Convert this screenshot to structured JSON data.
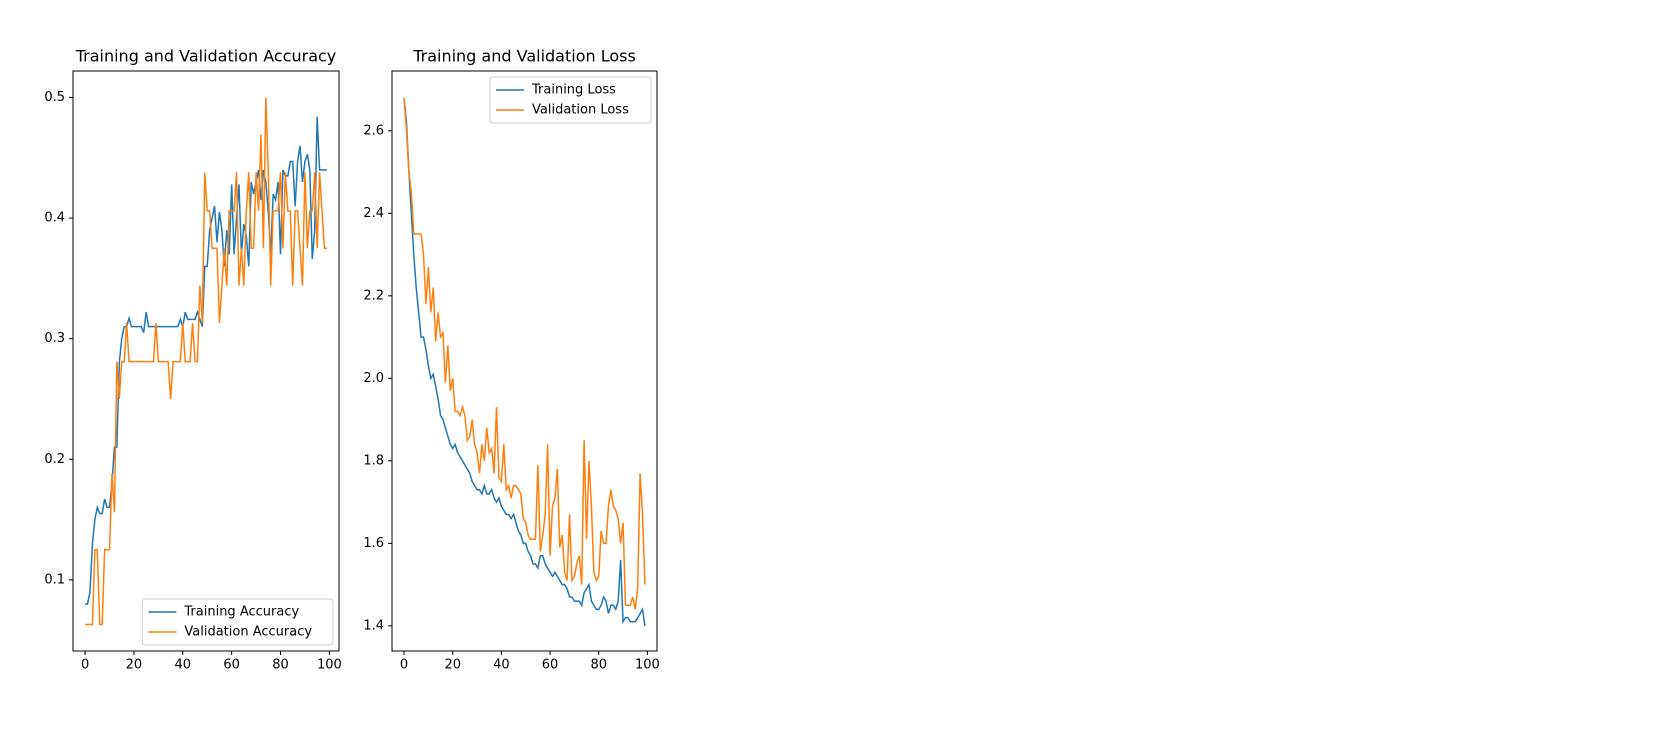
{
  "chart_data": [
    {
      "type": "line",
      "title": "Training and Validation Accuracy",
      "x": [
        0,
        1,
        2,
        3,
        4,
        5,
        6,
        7,
        8,
        9,
        10,
        11,
        12,
        13,
        14,
        15,
        16,
        17,
        18,
        19,
        20,
        21,
        22,
        23,
        24,
        25,
        26,
        27,
        28,
        29,
        30,
        31,
        32,
        33,
        34,
        35,
        36,
        37,
        38,
        39,
        40,
        41,
        42,
        43,
        44,
        45,
        46,
        47,
        48,
        49,
        50,
        51,
        52,
        53,
        54,
        55,
        56,
        57,
        58,
        59,
        60,
        61,
        62,
        63,
        64,
        65,
        66,
        67,
        68,
        69,
        70,
        71,
        72,
        73,
        74,
        75,
        76,
        77,
        78,
        79,
        80,
        81,
        82,
        83,
        84,
        85,
        86,
        87,
        88,
        89,
        90,
        91,
        92,
        93,
        94,
        95,
        96,
        97,
        98,
        99
      ],
      "series": [
        {
          "name": "Training Accuracy",
          "color": "#1f77b4",
          "values": [
            0.08,
            0.08,
            0.09,
            0.13,
            0.15,
            0.16,
            0.155,
            0.155,
            0.167,
            0.16,
            0.16,
            0.18,
            0.21,
            0.21,
            0.28,
            0.3,
            0.31,
            0.31,
            0.317,
            0.31,
            0.31,
            0.31,
            0.31,
            0.31,
            0.305,
            0.322,
            0.31,
            0.31,
            0.31,
            0.31,
            0.31,
            0.31,
            0.31,
            0.31,
            0.31,
            0.31,
            0.31,
            0.31,
            0.31,
            0.316,
            0.31,
            0.322,
            0.316,
            0.316,
            0.316,
            0.316,
            0.322,
            0.316,
            0.31,
            0.36,
            0.36,
            0.39,
            0.4,
            0.41,
            0.38,
            0.405,
            0.39,
            0.36,
            0.39,
            0.37,
            0.428,
            0.37,
            0.4,
            0.428,
            0.37,
            0.395,
            0.385,
            0.36,
            0.43,
            0.42,
            0.43,
            0.44,
            0.415,
            0.44,
            0.43,
            0.405,
            0.37,
            0.42,
            0.415,
            0.43,
            0.37,
            0.44,
            0.435,
            0.435,
            0.447,
            0.447,
            0.41,
            0.447,
            0.46,
            0.43,
            0.447,
            0.453,
            0.44,
            0.366,
            0.39,
            0.484,
            0.44,
            0.44,
            0.44,
            0.44
          ]
        },
        {
          "name": "Validation Accuracy",
          "color": "#ff7f0e",
          "values": [
            0.063,
            0.063,
            0.063,
            0.063,
            0.125,
            0.125,
            0.063,
            0.063,
            0.125,
            0.125,
            0.125,
            0.188,
            0.156,
            0.281,
            0.25,
            0.281,
            0.281,
            0.313,
            0.281,
            0.281,
            0.281,
            0.281,
            0.281,
            0.281,
            0.281,
            0.281,
            0.281,
            0.281,
            0.281,
            0.313,
            0.281,
            0.281,
            0.281,
            0.281,
            0.281,
            0.25,
            0.281,
            0.281,
            0.281,
            0.281,
            0.313,
            0.281,
            0.281,
            0.281,
            0.313,
            0.281,
            0.281,
            0.344,
            0.313,
            0.438,
            0.406,
            0.406,
            0.375,
            0.375,
            0.375,
            0.313,
            0.344,
            0.375,
            0.344,
            0.406,
            0.406,
            0.406,
            0.438,
            0.344,
            0.375,
            0.344,
            0.406,
            0.438,
            0.375,
            0.375,
            0.438,
            0.406,
            0.469,
            0.375,
            0.5,
            0.438,
            0.344,
            0.406,
            0.406,
            0.406,
            0.438,
            0.375,
            0.438,
            0.406,
            0.406,
            0.344,
            0.406,
            0.406,
            0.375,
            0.344,
            0.438,
            0.375,
            0.406,
            0.406,
            0.438,
            0.375,
            0.438,
            0.406,
            0.375,
            0.375
          ]
        }
      ],
      "xlim": [
        -4.95,
        103.95
      ],
      "xticks": [
        0,
        20,
        40,
        60,
        80,
        100
      ],
      "ylim": [
        0.041,
        0.522
      ],
      "yticks": [
        0.1,
        0.2,
        0.3,
        0.4,
        0.5
      ],
      "legend": "lower right"
    },
    {
      "type": "line",
      "title": "Training and Validation Loss",
      "x": [
        0,
        1,
        2,
        3,
        4,
        5,
        6,
        7,
        8,
        9,
        10,
        11,
        12,
        13,
        14,
        15,
        16,
        17,
        18,
        19,
        20,
        21,
        22,
        23,
        24,
        25,
        26,
        27,
        28,
        29,
        30,
        31,
        32,
        33,
        34,
        35,
        36,
        37,
        38,
        39,
        40,
        41,
        42,
        43,
        44,
        45,
        46,
        47,
        48,
        49,
        50,
        51,
        52,
        53,
        54,
        55,
        56,
        57,
        58,
        59,
        60,
        61,
        62,
        63,
        64,
        65,
        66,
        67,
        68,
        69,
        70,
        71,
        72,
        73,
        74,
        75,
        76,
        77,
        78,
        79,
        80,
        81,
        82,
        83,
        84,
        85,
        86,
        87,
        88,
        89,
        90,
        91,
        92,
        93,
        94,
        95,
        96,
        97,
        98,
        99
      ],
      "series": [
        {
          "name": "Training Loss",
          "color": "#1f77b4",
          "values": [
            2.68,
            2.62,
            2.5,
            2.4,
            2.3,
            2.22,
            2.16,
            2.1,
            2.1,
            2.07,
            2.03,
            2.0,
            2.01,
            1.98,
            1.95,
            1.91,
            1.9,
            1.88,
            1.86,
            1.84,
            1.83,
            1.84,
            1.82,
            1.81,
            1.8,
            1.79,
            1.78,
            1.77,
            1.75,
            1.74,
            1.73,
            1.73,
            1.72,
            1.74,
            1.72,
            1.72,
            1.73,
            1.71,
            1.7,
            1.71,
            1.69,
            1.68,
            1.67,
            1.67,
            1.66,
            1.67,
            1.65,
            1.63,
            1.62,
            1.6,
            1.6,
            1.58,
            1.57,
            1.55,
            1.55,
            1.54,
            1.57,
            1.57,
            1.55,
            1.54,
            1.53,
            1.52,
            1.53,
            1.52,
            1.51,
            1.5,
            1.5,
            1.49,
            1.47,
            1.47,
            1.46,
            1.46,
            1.46,
            1.45,
            1.48,
            1.49,
            1.5,
            1.46,
            1.45,
            1.44,
            1.44,
            1.45,
            1.47,
            1.46,
            1.43,
            1.45,
            1.45,
            1.44,
            1.46,
            1.56,
            1.41,
            1.42,
            1.42,
            1.41,
            1.41,
            1.41,
            1.42,
            1.43,
            1.44,
            1.4
          ]
        },
        {
          "name": "Validation Loss",
          "color": "#ff7f0e",
          "values": [
            2.68,
            2.6,
            2.5,
            2.45,
            2.35,
            2.35,
            2.35,
            2.35,
            2.3,
            2.18,
            2.27,
            2.16,
            2.22,
            2.09,
            2.16,
            2.1,
            2.11,
            1.99,
            2.08,
            1.97,
            2.0,
            1.92,
            1.92,
            1.91,
            1.93,
            1.91,
            1.85,
            1.86,
            1.9,
            1.84,
            1.82,
            1.77,
            1.84,
            1.8,
            1.88,
            1.82,
            1.83,
            1.77,
            1.93,
            1.76,
            1.75,
            1.84,
            1.73,
            1.74,
            1.71,
            1.74,
            1.74,
            1.73,
            1.72,
            1.66,
            1.65,
            1.62,
            1.61,
            1.61,
            1.61,
            1.79,
            1.58,
            1.62,
            1.67,
            1.84,
            1.57,
            1.69,
            1.71,
            1.78,
            1.59,
            1.62,
            1.53,
            1.51,
            1.67,
            1.51,
            1.52,
            1.55,
            1.57,
            1.5,
            1.85,
            1.61,
            1.8,
            1.69,
            1.53,
            1.51,
            1.52,
            1.63,
            1.6,
            1.6,
            1.69,
            1.73,
            1.69,
            1.68,
            1.66,
            1.6,
            1.65,
            1.45,
            1.45,
            1.45,
            1.47,
            1.44,
            1.49,
            1.77,
            1.67,
            1.5
          ]
        }
      ],
      "xlim": [
        -4.95,
        103.95
      ],
      "xticks": [
        0,
        20,
        40,
        60,
        80,
        100
      ],
      "ylim": [
        1.339,
        2.745
      ],
      "yticks": [
        1.4,
        1.6,
        1.8,
        {
          "value": 2,
          "label": "2.0"
        },
        2.2,
        2.4,
        2.6
      ],
      "legend": "upper right"
    }
  ]
}
